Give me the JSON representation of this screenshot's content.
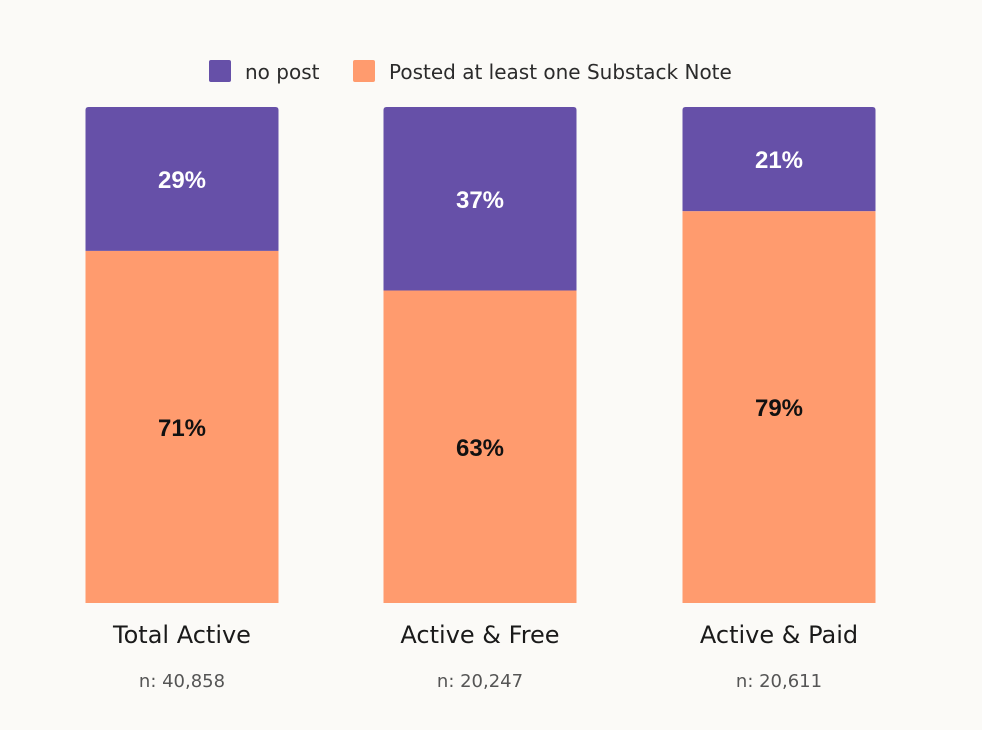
{
  "chart_data": {
    "type": "bar",
    "stacked": true,
    "categories": [
      "Total Active",
      "Active & Free",
      "Active & Paid"
    ],
    "sample_sizes": [
      "n: 40,858",
      "n: 20,247",
      "n: 20,611"
    ],
    "series": [
      {
        "name": "no post",
        "values": [
          29,
          37,
          21
        ],
        "labels": [
          "29%",
          "37%",
          "21%"
        ],
        "color": "#6650a8",
        "label_color": "#ffffff"
      },
      {
        "name": "Posted at least one Substack Note",
        "values": [
          71,
          63,
          79
        ],
        "labels": [
          "71%",
          "63%",
          "79%"
        ],
        "color": "#ff9b6e",
        "label_color": "#111111"
      }
    ],
    "ylim": [
      0,
      100
    ],
    "grid": false,
    "legend_position": "top-center"
  }
}
